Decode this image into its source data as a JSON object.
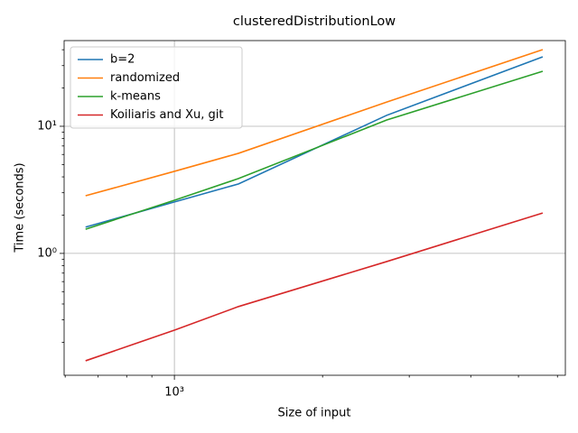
{
  "chart_data": {
    "type": "line",
    "title": "clusteredDistributionLow",
    "x_label": "Size of input",
    "y_label": "Time (seconds)",
    "x": [
      660,
      1000,
      1350,
      2700,
      5600
    ],
    "series": [
      {
        "name": "b=2",
        "color": "#1f77b4",
        "values": [
          1.61,
          2.54,
          3.52,
          12.2,
          35.2
        ]
      },
      {
        "name": "randomized",
        "color": "#ff7f0e",
        "values": [
          2.84,
          4.42,
          6.13,
          15.5,
          40.1
        ]
      },
      {
        "name": "k-means",
        "color": "#2ca02c",
        "values": [
          1.55,
          2.62,
          3.88,
          11.2,
          27.1
        ]
      },
      {
        "name": "Koiliaris and Xu, git",
        "color": "#d62728",
        "values": [
          0.143,
          0.249,
          0.382,
          0.863,
          2.08
        ]
      }
    ],
    "xscale": "log",
    "yscale": "log",
    "xlim": [
      597,
      6226
    ],
    "ylim": [
      0.11,
      47.2
    ],
    "xticks": [
      {
        "value": 1000,
        "label": "10³"
      }
    ],
    "yticks": [
      {
        "value": 1,
        "label": "10⁰"
      },
      {
        "value": 10,
        "label": "10¹"
      }
    ],
    "xminorticks": [
      600,
      700,
      800,
      900,
      2000,
      3000,
      4000,
      5000,
      6000
    ],
    "yminorticks": [
      0.2,
      0.3,
      0.4,
      0.5,
      0.6,
      0.7,
      0.8,
      0.9,
      2,
      3,
      4,
      5,
      6,
      7,
      8,
      9,
      20,
      30,
      40
    ],
    "grid": true,
    "legend": "upper-left"
  }
}
